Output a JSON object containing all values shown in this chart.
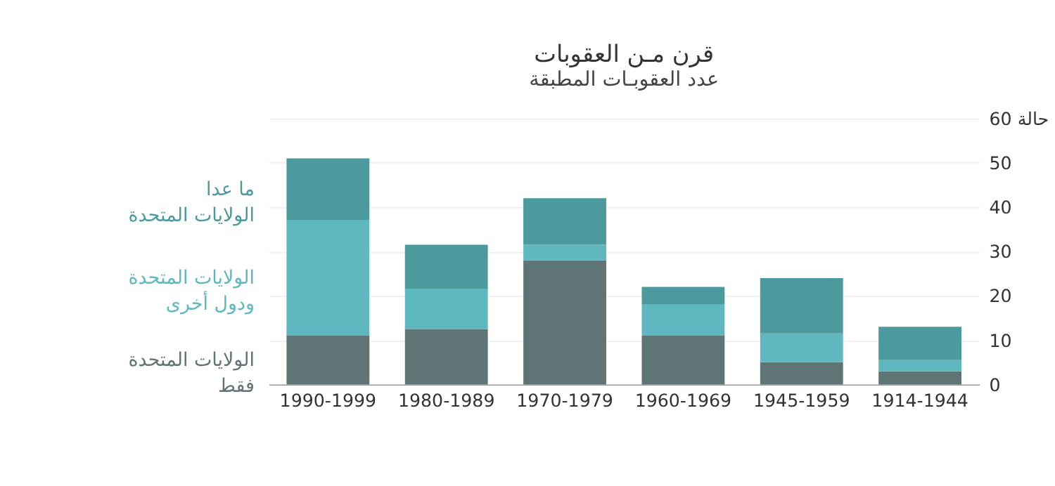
{
  "chart_data": {
    "type": "bar",
    "stacked": true,
    "title": "قرن مـن العقوبات",
    "subtitle": "عدد العقوبـات المطبقة",
    "categories": [
      "1990-1999",
      "1980-1989",
      "1970-1979",
      "1960-1969",
      "1945-1959",
      "1914-1944"
    ],
    "series": [
      {
        "name": "الولايات المتحدة\nفقط",
        "color": "#5f7474",
        "values": [
          11,
          12.5,
          28,
          11,
          5,
          3
        ]
      },
      {
        "name": "الولايات المتحدة\nودول أخرى",
        "color": "#5fb7c0",
        "values": [
          26,
          9,
          3.5,
          7,
          6.5,
          2.5
        ]
      },
      {
        "name": "ما عدا\nالولايات المتحدة",
        "color": "#4a9a9e",
        "values": [
          14,
          10,
          10.5,
          4,
          12.5,
          7.5
        ]
      }
    ],
    "ylim": [
      0,
      60
    ],
    "yticks": [
      0,
      10,
      20,
      30,
      40,
      50,
      {
        "value": 60,
        "label": "60 حالة"
      }
    ],
    "grid": "y",
    "legend": "left"
  }
}
